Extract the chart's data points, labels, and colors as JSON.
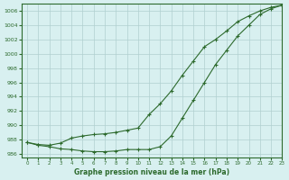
{
  "xlabel": "Graphe pression niveau de la mer (hPa)",
  "background_color": "#d8f0f0",
  "grid_color": "#b0d0d0",
  "line_color": "#2d6a2d",
  "ylim": [
    985.5,
    1007.0
  ],
  "xlim": [
    -0.5,
    23
  ],
  "yticks": [
    986,
    988,
    990,
    992,
    994,
    996,
    998,
    1000,
    1002,
    1004,
    1006
  ],
  "xticks": [
    0,
    1,
    2,
    3,
    4,
    5,
    6,
    7,
    8,
    9,
    10,
    11,
    12,
    13,
    14,
    15,
    16,
    17,
    18,
    19,
    20,
    21,
    22,
    23
  ],
  "series1_x": [
    0,
    1,
    2,
    3,
    4,
    5,
    6,
    7,
    8,
    9,
    10,
    11,
    12,
    13,
    14,
    15,
    16,
    17,
    18,
    19,
    20,
    21,
    22,
    23
  ],
  "series1_y": [
    987.6,
    987.3,
    987.2,
    987.5,
    988.2,
    988.5,
    988.7,
    988.8,
    989.0,
    989.3,
    989.6,
    991.5,
    993.0,
    994.8,
    997.0,
    999.0,
    1001.0,
    1002.0,
    1003.2,
    1004.5,
    1005.3,
    1006.0,
    1006.5,
    1006.8
  ],
  "series2_x": [
    0,
    1,
    2,
    3,
    4,
    5,
    6,
    7,
    8,
    9,
    10,
    11,
    12,
    13,
    14,
    15,
    16,
    17,
    18,
    19,
    20,
    21,
    22,
    23
  ],
  "series2_y": [
    987.6,
    987.2,
    987.0,
    986.7,
    986.6,
    986.4,
    986.3,
    986.3,
    986.4,
    986.6,
    986.6,
    986.6,
    987.0,
    988.5,
    991.0,
    993.5,
    996.0,
    998.5,
    1000.5,
    1002.5,
    1004.0,
    1005.5,
    1006.3,
    1006.8
  ]
}
